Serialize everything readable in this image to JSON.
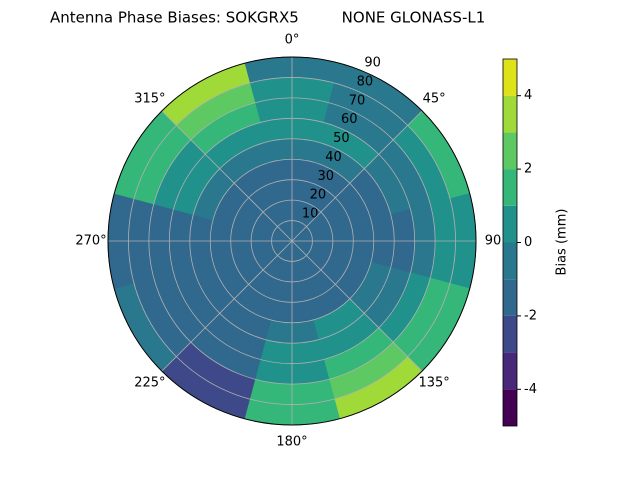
{
  "chart_data": {
    "type": "polar-contour",
    "title": "Antenna Phase Biases: SOKGRX5         NONE GLONASS-L1",
    "theta_ticks": [
      {
        "value": 0,
        "label": "0°"
      },
      {
        "value": 45,
        "label": "45°"
      },
      {
        "value": 90,
        "label": "90"
      },
      {
        "value": 135,
        "label": "135°"
      },
      {
        "value": 180,
        "label": "180°"
      },
      {
        "value": 225,
        "label": "225°"
      },
      {
        "value": 270,
        "label": "270°"
      },
      {
        "value": 315,
        "label": "315°"
      }
    ],
    "rlim": [
      0,
      90
    ],
    "rticks": [
      10,
      20,
      30,
      40,
      50,
      60,
      70,
      80,
      90
    ],
    "grid": true,
    "x": [
      0,
      30,
      60,
      90,
      120,
      150,
      180,
      210,
      240,
      270,
      300,
      330
    ],
    "y": [
      5,
      15,
      25,
      35,
      45,
      55,
      65,
      75,
      85
    ],
    "z": [
      [
        -1.5,
        -1.5,
        -1.5,
        -1.5,
        -1.5,
        -1.5,
        -1.5,
        -1.5,
        -1.5,
        -1.5,
        -1.5,
        -1.5
      ],
      [
        -1.5,
        -1.5,
        -1.5,
        -1.5,
        -1.5,
        -1.5,
        -1.5,
        -1.5,
        -1.5,
        -1.5,
        -1.5,
        -1.5
      ],
      [
        -1.5,
        -1.5,
        -1.5,
        -1.5,
        -1.5,
        -1.5,
        -1.5,
        -1.5,
        -1.5,
        -1.5,
        -1.5,
        -1.5
      ],
      [
        -1.5,
        -1.5,
        -1.5,
        -1.5,
        -1.5,
        -1.5,
        -1.5,
        -1.5,
        -1.5,
        -1.5,
        -1.5,
        -1.5
      ],
      [
        -0.5,
        -0.5,
        -1.5,
        -1.5,
        -0.5,
        0.5,
        -0.5,
        -1.5,
        -1.5,
        -1.5,
        -0.5,
        -0.5
      ],
      [
        0.5,
        0.5,
        -0.5,
        -1.5,
        -0.5,
        0.5,
        0.5,
        -1.5,
        -1.5,
        -1.5,
        0.5,
        0.5
      ],
      [
        0.5,
        -0.5,
        -0.5,
        -0.5,
        0.5,
        1.5,
        0.5,
        -1.5,
        -1.5,
        -1.5,
        0.5,
        1.5
      ],
      [
        0.5,
        -0.5,
        0.5,
        0.5,
        1.5,
        2.5,
        1.5,
        -2.5,
        -1.5,
        -1.5,
        1.5,
        2.5
      ],
      [
        -0.5,
        -0.5,
        1.5,
        0.5,
        1.5,
        3.5,
        1.5,
        -2.5,
        -0.5,
        -1.5,
        1.5,
        3.5
      ]
    ],
    "levels": [
      -5,
      -4,
      -3,
      -2,
      -1,
      0,
      1,
      2,
      3,
      4,
      5
    ],
    "colors": [
      "#440154",
      "#482878",
      "#3e4989",
      "#31688e",
      "#2a788e",
      "#21918c",
      "#35b779",
      "#5ec962",
      "#a0da39",
      "#dde318"
    ],
    "colorbar_label": "Bias (mm)",
    "cticks": [
      -4,
      -2,
      0,
      2,
      4
    ]
  }
}
